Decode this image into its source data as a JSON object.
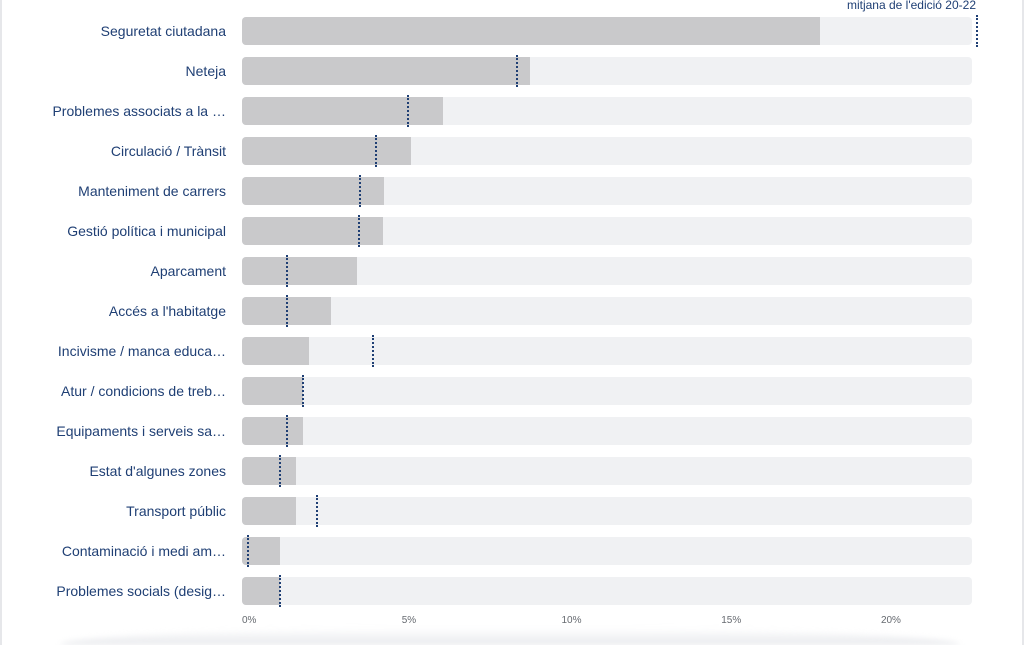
{
  "chart_data": {
    "type": "bar",
    "orientation": "horizontal",
    "legend": "mitjana de l'edició 20-22",
    "categories": [
      "Seguretat ciutadana",
      "Neteja",
      "Problemes associats a la …",
      "Circulació / Trànsit",
      "Manteniment de carrers",
      "Gestió política i municipal",
      "Aparcament",
      "Accés a l'habitatge",
      "Incivisme / manca educa…",
      "Atur / condicions de treb…",
      "Equipaments i serveis sa…",
      "Estat d'algunes zones",
      "Transport públic",
      "Contaminació i medi am…",
      "Problemes socials (desig…"
    ],
    "values": [
      18.1,
      9.0,
      6.3,
      5.3,
      4.45,
      4.4,
      3.6,
      2.8,
      2.1,
      1.9,
      1.9,
      1.7,
      1.7,
      1.2,
      1.2
    ],
    "average": [
      23.0,
      8.6,
      5.2,
      4.2,
      3.7,
      3.65,
      1.4,
      1.4,
      4.1,
      1.9,
      1.4,
      1.2,
      2.35,
      0.2,
      1.2
    ],
    "xlim": [
      0,
      22.85
    ],
    "xticks": [
      0,
      5,
      10,
      15,
      20
    ],
    "xtick_labels": [
      "0%",
      "5%",
      "10%",
      "15%",
      "20%"
    ],
    "grid": false
  },
  "colors": {
    "bar": "#c9c9cb",
    "track": "#f0f1f3",
    "average_marker": "#1f3f74",
    "label_text": "#1f3f74"
  }
}
